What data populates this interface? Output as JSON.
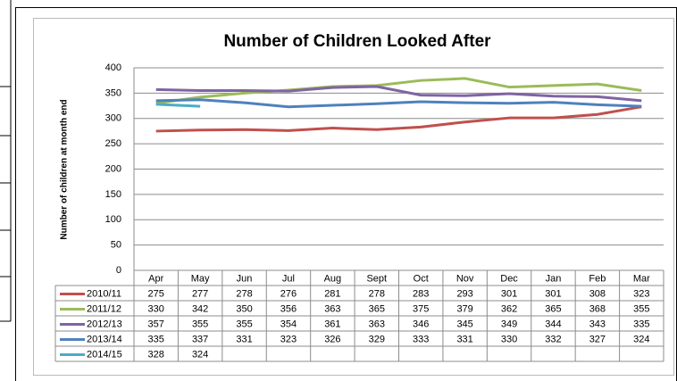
{
  "chart_data": {
    "type": "line",
    "title": "Number of Children Looked After",
    "y_label": "Number of children at month end",
    "categories": [
      "Apr",
      "May",
      "Jun",
      "Jul",
      "Aug",
      "Sept",
      "Oct",
      "Nov",
      "Dec",
      "Jan",
      "Feb",
      "Mar"
    ],
    "series": [
      {
        "name": "2010/11",
        "color": "#c0504d",
        "values": [
          275,
          277,
          278,
          276,
          281,
          278,
          283,
          293,
          301,
          301,
          308,
          323
        ]
      },
      {
        "name": "2011/12",
        "color": "#9bbb59",
        "values": [
          330,
          342,
          350,
          356,
          363,
          365,
          375,
          379,
          362,
          365,
          368,
          355
        ]
      },
      {
        "name": "2012/13",
        "color": "#8064a2",
        "values": [
          357,
          355,
          355,
          354,
          361,
          363,
          346,
          345,
          349,
          344,
          343,
          335
        ]
      },
      {
        "name": "2013/14",
        "color": "#4f81bd",
        "values": [
          335,
          337,
          331,
          323,
          326,
          329,
          333,
          331,
          330,
          332,
          327,
          324
        ]
      },
      {
        "name": "2014/15",
        "color": "#4bacc6",
        "values": [
          328,
          324,
          null,
          null,
          null,
          null,
          null,
          null,
          null,
          null,
          null,
          null
        ]
      }
    ],
    "ylim": [
      0,
      400
    ],
    "yticks": [
      0,
      50,
      100,
      150,
      200,
      250,
      300,
      350,
      400
    ],
    "grid": true,
    "data_table": true
  }
}
